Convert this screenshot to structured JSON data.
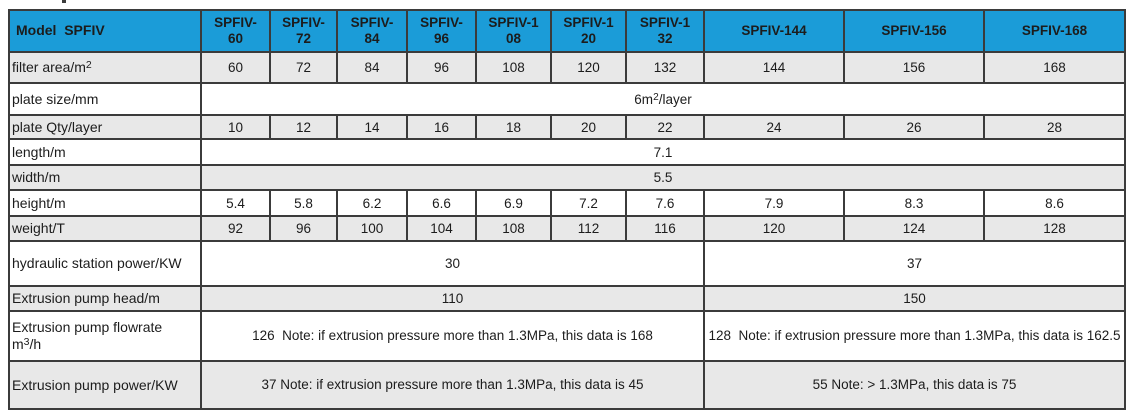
{
  "colors": {
    "header_bg": "#1b9cd8",
    "header_text": "#ffffff",
    "alt_row_bg": "#e8e8e8",
    "row_bg": "#ffffff",
    "border": "#3b3b3b",
    "text": "#1c1c1c"
  },
  "table": {
    "corner_label": "Model  SPFIV",
    "models": [
      "SPFIV-\n60",
      "SPFIV-\n72",
      "SPFIV-\n84",
      "SPFIV-\n96",
      "SPFIV-1\n08",
      "SPFIV-1\n20",
      "SPFIV-1\n32",
      "SPFIV-144",
      "SPFIV-156",
      "SPFIV-168"
    ],
    "rows": {
      "filter_area": {
        "label": "filter area/m²",
        "values": [
          "60",
          "72",
          "84",
          "96",
          "108",
          "120",
          "132",
          "144",
          "156",
          "168"
        ]
      },
      "plate_size": {
        "label": "plate size/mm",
        "value": "6m²/layer"
      },
      "plate_qty": {
        "label": "plate Qty/layer",
        "values": [
          "10",
          "12",
          "14",
          "16",
          "18",
          "20",
          "22",
          "24",
          "26",
          "28"
        ]
      },
      "length": {
        "label": "length/m",
        "value": "7.1"
      },
      "width": {
        "label": "width/m",
        "value": "5.5"
      },
      "height": {
        "label": "height/m",
        "values": [
          "5.4",
          "5.8",
          "6.2",
          "6.6",
          "6.9",
          "7.2",
          "7.6",
          "7.9",
          "8.3",
          "8.6"
        ]
      },
      "weight": {
        "label": "weight/T",
        "values": [
          "92",
          "96",
          "100",
          "104",
          "108",
          "112",
          "116",
          "120",
          "124",
          "128"
        ]
      },
      "hydraulic_power": {
        "label": "hydraulic station power/KW",
        "left": "30",
        "right": "37"
      },
      "pump_head": {
        "label": "Extrusion pump head/m",
        "left": "110",
        "right": "150"
      },
      "pump_flowrate": {
        "label": "Extrusion pump flowrate  m³/h",
        "left": "126  Note: if extrusion pressure more than 1.3MPa, this data is 168",
        "right": "128  Note: if extrusion pressure more than 1.3MPa, this data is 162.5"
      },
      "pump_power": {
        "label": "Extrusion pump power/KW",
        "left": "37 Note: if extrusion pressure more than 1.3MPa, this data is 45",
        "right": "55 Note: > 1.3MPa, this data is 75"
      }
    }
  }
}
